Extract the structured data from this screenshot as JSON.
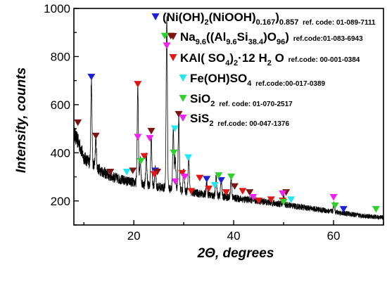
{
  "chart_data": {
    "type": "line",
    "xlabel": "2Θ, degrees",
    "ylabel": "Intensity, counts",
    "xlim": [
      8,
      70
    ],
    "ylim": [
      100,
      1000
    ],
    "xticks": [
      20,
      40,
      60
    ],
    "yticks": [
      200,
      400,
      600,
      800,
      1000
    ],
    "grid": false,
    "legend_position": "top-right",
    "pattern": {
      "baseline": [
        [
          8,
          480
        ],
        [
          9,
          440
        ],
        [
          10,
          380
        ],
        [
          12,
          345
        ],
        [
          15,
          305
        ],
        [
          18,
          285
        ],
        [
          22,
          268
        ],
        [
          26,
          255
        ],
        [
          30,
          240
        ],
        [
          35,
          225
        ],
        [
          40,
          212
        ],
        [
          45,
          200
        ],
        [
          50,
          185
        ],
        [
          55,
          170
        ],
        [
          60,
          155
        ],
        [
          65,
          140
        ],
        [
          70,
          130
        ]
      ],
      "peaks": [
        [
          11.5,
          700
        ],
        [
          12.4,
          460
        ],
        [
          20.8,
          670
        ],
        [
          21.3,
          380
        ],
        [
          22.5,
          390
        ],
        [
          23.5,
          460
        ],
        [
          24.3,
          330
        ],
        [
          26.6,
          960
        ],
        [
          27.9,
          500
        ],
        [
          28.3,
          380
        ],
        [
          29.0,
          540
        ],
        [
          30.0,
          330
        ],
        [
          31.0,
          380
        ],
        [
          34.6,
          280
        ],
        [
          36.5,
          300
        ],
        [
          37.5,
          290
        ],
        [
          39.5,
          300
        ],
        [
          50.0,
          225
        ],
        [
          60.1,
          190
        ]
      ]
    },
    "phases": [
      {
        "name": {
          "pre": "(Ni(OH)",
          "s1": "2",
          "mid": "(NiOOH)",
          "s2": "0.167",
          "post": ")",
          "s3": "0.857"
        },
        "ref": "ref. code: 01-089-7111",
        "color": "#1f1fd6",
        "positions": [
          [
            11.5,
            715
          ],
          [
            24.3,
            325
          ],
          [
            34.6,
            290
          ],
          [
            37.5,
            285
          ],
          [
            62.0,
            165
          ]
        ]
      },
      {
        "name": {
          "pre": "Na",
          "s1": "9.6",
          "mid": "((Al",
          "s2": "9.6",
          "mid2": "Si",
          "s3": "38.4",
          "mid3": ")O",
          "s4": "96",
          "post": ")"
        },
        "ref": "ref.code:01-083-6943",
        "color": "#7b1414",
        "positions": [
          [
            8.8,
            525
          ],
          [
            12.4,
            470
          ],
          [
            15.3,
            320
          ],
          [
            19.8,
            325
          ],
          [
            23.5,
            490
          ],
          [
            24.7,
            320
          ],
          [
            27.4,
            885
          ],
          [
            29.0,
            560
          ],
          [
            40.2,
            260
          ],
          [
            43.2,
            235
          ],
          [
            50.5,
            235
          ]
        ]
      },
      {
        "name": {
          "pre": "KAl( SO",
          "s1": "4",
          "post": ")",
          "s2": "2",
          "post2": "·12 H",
          "s3": "2",
          "post3": " O"
        },
        "ref": "ref.code: 00-001-0384",
        "color": "#e01616",
        "positions": [
          [
            20.8,
            685
          ],
          [
            22.1,
            385
          ],
          [
            24.1,
            310
          ],
          [
            29.7,
            315
          ],
          [
            31.5,
            240
          ],
          [
            33.2,
            295
          ],
          [
            35.0,
            250
          ],
          [
            38.5,
            235
          ],
          [
            41.8,
            240
          ],
          [
            45.0,
            200
          ],
          [
            47.5,
            205
          ],
          [
            49.8,
            200
          ]
        ]
      },
      {
        "name": {
          "pre": "Fe(OH)SO",
          "s1": "4"
        },
        "ref": "ref.code:00-017-0389",
        "color": "#22e6f0",
        "positions": [
          [
            18.6,
            320
          ],
          [
            28.2,
            500
          ],
          [
            30.9,
            380
          ],
          [
            36.2,
            265
          ],
          [
            51.5,
            205
          ]
        ]
      },
      {
        "name": {
          "pre": "SiO",
          "s1": "2"
        },
        "ref": "ref. code: 01-070-2517",
        "color": "#2ed12e",
        "positions": [
          [
            21.4,
            365
          ],
          [
            26.2,
            885
          ],
          [
            28.0,
            400
          ],
          [
            37.0,
            305
          ],
          [
            39.5,
            300
          ],
          [
            50.0,
            195
          ],
          [
            60.3,
            180
          ],
          [
            68.5,
            165
          ]
        ]
      },
      {
        "name": {
          "pre": "SiS",
          "s1": "2"
        },
        "ref": "ref.code: 00-047-1376",
        "color": "#ee22ee",
        "positions": [
          [
            20.8,
            465
          ],
          [
            23.2,
            460
          ],
          [
            26.6,
            845
          ],
          [
            28.3,
            280
          ],
          [
            30.2,
            300
          ],
          [
            43.9,
            215
          ],
          [
            49.8,
            230
          ],
          [
            60.0,
            215
          ]
        ]
      }
    ]
  }
}
